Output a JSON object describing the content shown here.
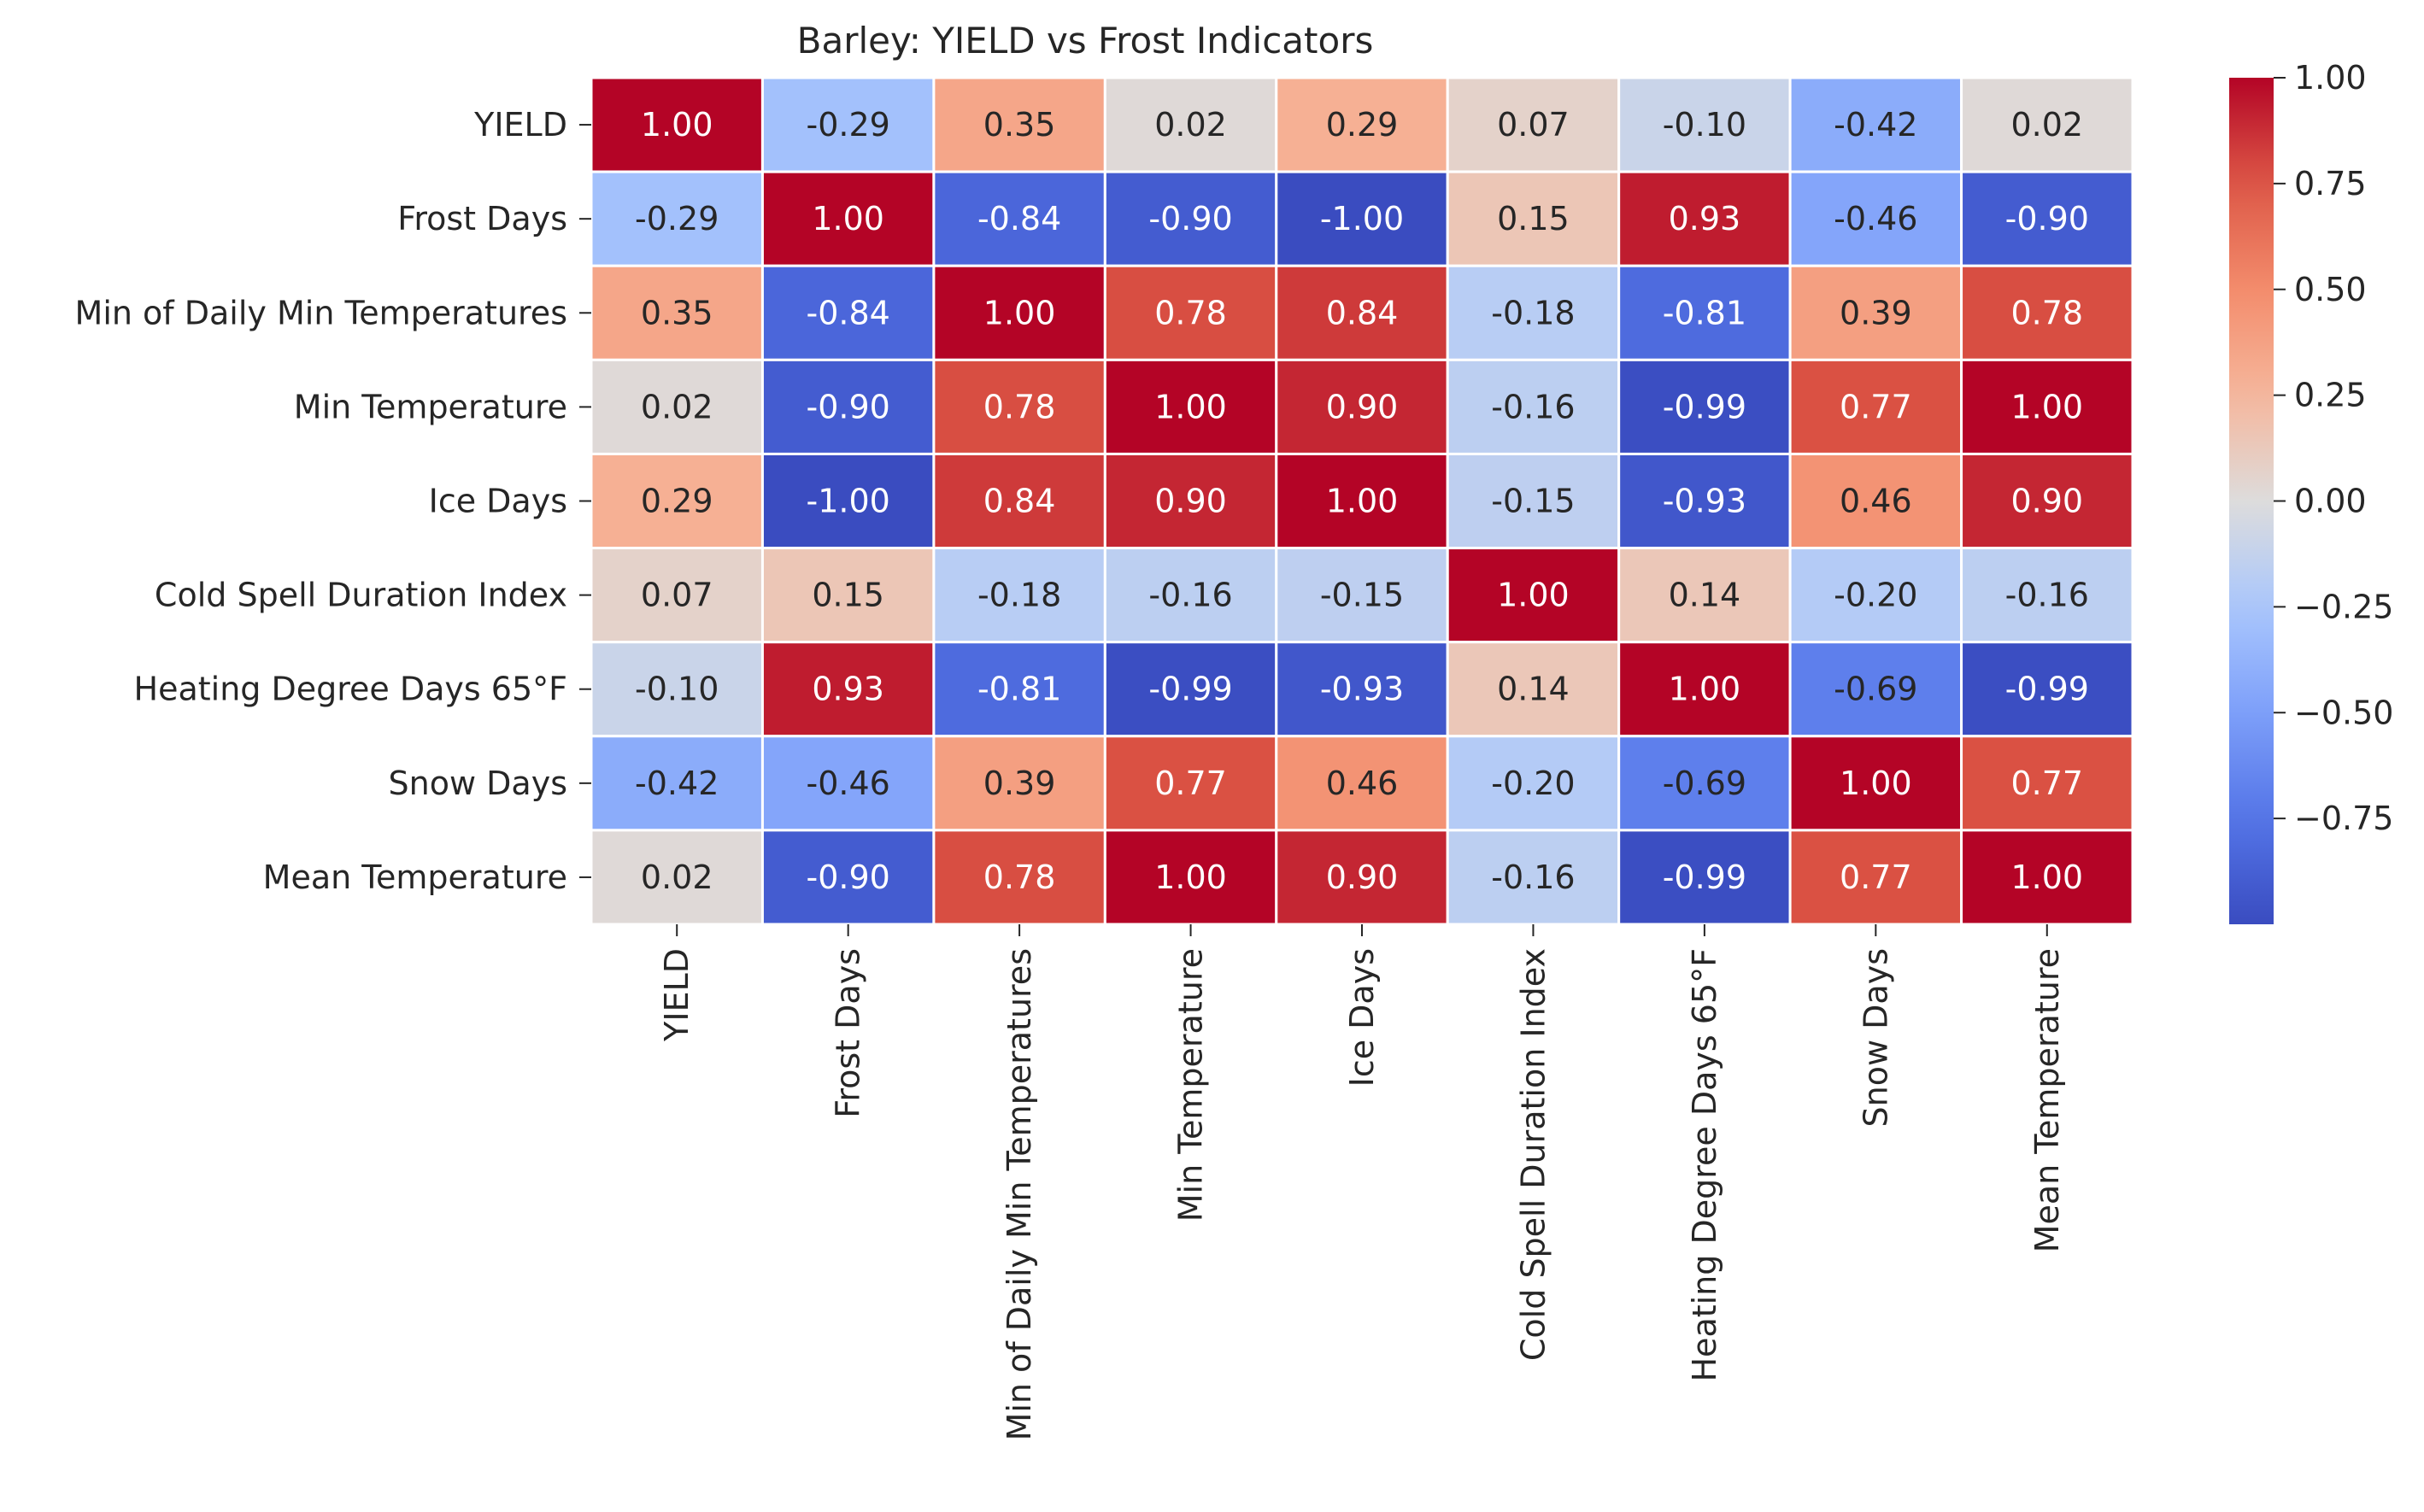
{
  "chart_data": {
    "type": "heatmap",
    "title": "Barley: YIELD vs Frost Indicators",
    "row_labels": [
      "YIELD",
      "Frost Days",
      "Min of Daily Min Temperatures",
      "Min Temperature",
      "Ice Days",
      "Cold Spell Duration Index",
      "Heating Degree Days 65°F",
      "Snow Days",
      "Mean Temperature"
    ],
    "col_labels": [
      "YIELD",
      "Frost Days",
      "Min of Daily Min Temperatures",
      "Min Temperature",
      "Ice Days",
      "Cold Spell Duration Index",
      "Heating Degree Days 65°F",
      "Snow Days",
      "Mean Temperature"
    ],
    "values": [
      [
        1.0,
        -0.29,
        0.35,
        0.02,
        0.29,
        0.07,
        -0.1,
        -0.42,
        0.02
      ],
      [
        -0.29,
        1.0,
        -0.84,
        -0.9,
        -1.0,
        0.15,
        0.93,
        -0.46,
        -0.9
      ],
      [
        0.35,
        -0.84,
        1.0,
        0.78,
        0.84,
        -0.18,
        -0.81,
        0.39,
        0.78
      ],
      [
        0.02,
        -0.9,
        0.78,
        1.0,
        0.9,
        -0.16,
        -0.99,
        0.77,
        1.0
      ],
      [
        0.29,
        -1.0,
        0.84,
        0.9,
        1.0,
        -0.15,
        -0.93,
        0.46,
        0.9
      ],
      [
        0.07,
        0.15,
        -0.18,
        -0.16,
        -0.15,
        1.0,
        0.14,
        -0.2,
        -0.16
      ],
      [
        -0.1,
        0.93,
        -0.81,
        -0.99,
        -0.93,
        0.14,
        1.0,
        -0.69,
        -0.99
      ],
      [
        -0.42,
        -0.46,
        0.39,
        0.77,
        0.46,
        -0.2,
        -0.69,
        1.0,
        0.77
      ],
      [
        0.02,
        -0.9,
        0.78,
        1.0,
        0.9,
        -0.16,
        -0.99,
        0.77,
        1.0
      ]
    ],
    "value_format": "0.00",
    "colormap": "coolwarm",
    "vmin": -1.0,
    "vmax": 1.0,
    "colorbar_ticks": [
      1.0,
      0.75,
      0.5,
      0.25,
      0.0,
      -0.25,
      -0.5,
      -0.75
    ],
    "colorbar_tick_labels": [
      "1.00",
      "0.75",
      "0.50",
      "0.25",
      "0.00",
      "−0.25",
      "−0.50",
      "−0.75"
    ],
    "grid": true,
    "legend": "colorbar-right"
  }
}
